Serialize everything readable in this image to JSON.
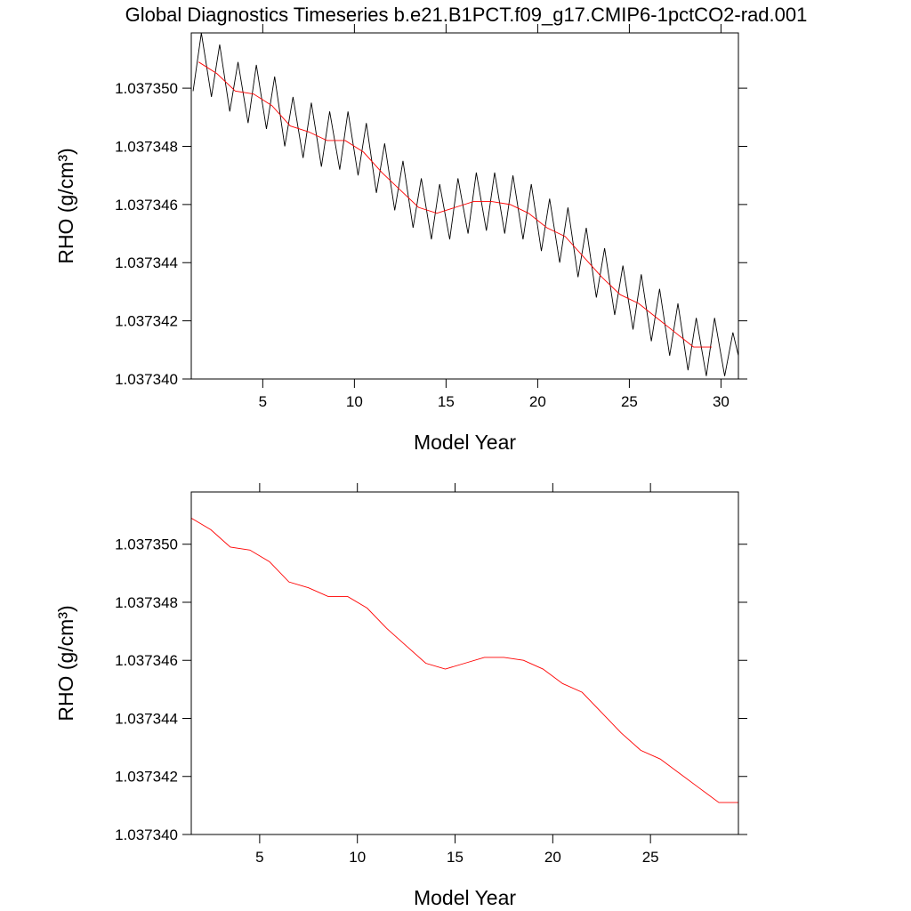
{
  "chart_data": [
    {
      "type": "line",
      "title": "Global Diagnostics Timeseries b.e21.B1PCT.f09_g17.CMIP6-1pctCO2-rad.001",
      "xlabel": "Model Year",
      "ylabel": "RHO (g/cm³)",
      "xlim": [
        1.1,
        30.95
      ],
      "xticks": [
        5,
        10,
        15,
        20,
        25,
        30
      ],
      "ylim": [
        1.03734,
        1.0373519
      ],
      "yticks": [
        {
          "value": 1.03734,
          "label": "1.037340"
        },
        {
          "value": 1.037342,
          "label": "1.037342"
        },
        {
          "value": 1.037344,
          "label": "1.037344"
        },
        {
          "value": 1.037346,
          "label": "1.037346"
        },
        {
          "value": 1.037348,
          "label": "1.037348"
        },
        {
          "value": 1.03735,
          "label": "1.037350"
        }
      ],
      "series": [
        {
          "color": "#000000",
          "x": [
            1.2,
            1.65,
            2.2,
            2.65,
            3.2,
            3.65,
            4.2,
            4.65,
            5.2,
            5.65,
            6.2,
            6.65,
            7.2,
            7.65,
            8.2,
            8.65,
            9.2,
            9.65,
            10.2,
            10.65,
            11.2,
            11.65,
            12.2,
            12.65,
            13.2,
            13.65,
            14.2,
            14.65,
            15.2,
            15.65,
            16.2,
            16.65,
            17.2,
            17.65,
            18.2,
            18.65,
            19.2,
            19.65,
            20.2,
            20.65,
            21.2,
            21.65,
            22.2,
            22.65,
            23.2,
            23.65,
            24.2,
            24.65,
            25.2,
            25.65,
            26.2,
            26.65,
            27.2,
            27.65,
            28.2,
            28.65,
            29.2,
            29.65,
            30.2,
            30.65,
            30.95
          ],
          "values": [
            1.0373499,
            1.0373519,
            1.0373497,
            1.0373515,
            1.0373492,
            1.0373509,
            1.0373488,
            1.0373508,
            1.0373486,
            1.0373504,
            1.037348,
            1.0373497,
            1.0373476,
            1.0373495,
            1.0373473,
            1.0373492,
            1.0373472,
            1.0373492,
            1.037347,
            1.0373488,
            1.0373464,
            1.0373481,
            1.0373458,
            1.0373475,
            1.0373452,
            1.0373469,
            1.0373448,
            1.0373467,
            1.0373448,
            1.0373469,
            1.037345,
            1.0373471,
            1.0373451,
            1.0373471,
            1.037345,
            1.037347,
            1.0373448,
            1.0373467,
            1.0373444,
            1.0373462,
            1.037344,
            1.0373459,
            1.0373435,
            1.0373452,
            1.0373428,
            1.0373445,
            1.0373422,
            1.0373439,
            1.0373417,
            1.0373436,
            1.0373413,
            1.0373431,
            1.0373408,
            1.0373426,
            1.0373403,
            1.0373421,
            1.0373401,
            1.0373421,
            1.0373401,
            1.0373416,
            1.0373408
          ]
        },
        {
          "color": "#ff0000",
          "x": [
            1.5,
            2.5,
            3.5,
            4.5,
            5.5,
            6.5,
            7.5,
            8.5,
            9.5,
            10.5,
            11.5,
            12.5,
            13.5,
            14.5,
            15.5,
            16.5,
            17.5,
            18.5,
            19.5,
            20.5,
            21.5,
            22.5,
            23.5,
            24.5,
            25.5,
            26.5,
            27.5,
            28.5,
            29.5
          ],
          "values": [
            1.0373509,
            1.0373505,
            1.0373499,
            1.0373498,
            1.0373494,
            1.0373487,
            1.0373485,
            1.0373482,
            1.0373482,
            1.0373478,
            1.0373471,
            1.0373465,
            1.0373459,
            1.0373457,
            1.0373459,
            1.0373461,
            1.0373461,
            1.037346,
            1.0373457,
            1.0373452,
            1.0373449,
            1.0373442,
            1.0373435,
            1.0373429,
            1.0373426,
            1.0373421,
            1.0373416,
            1.0373411,
            1.0373411
          ]
        }
      ]
    },
    {
      "type": "line",
      "xlabel": "Model Year",
      "ylabel": "RHO (g/cm³)",
      "xlim": [
        1.5,
        29.5
      ],
      "xticks": [
        5,
        10,
        15,
        20,
        25
      ],
      "ylim": [
        1.03734,
        1.0373518
      ],
      "yticks": [
        {
          "value": 1.03734,
          "label": "1.037340"
        },
        {
          "value": 1.037342,
          "label": "1.037342"
        },
        {
          "value": 1.037344,
          "label": "1.037344"
        },
        {
          "value": 1.037346,
          "label": "1.037346"
        },
        {
          "value": 1.037348,
          "label": "1.037348"
        },
        {
          "value": 1.03735,
          "label": "1.037350"
        }
      ],
      "series": [
        {
          "color": "#ff0000",
          "x": [
            1.5,
            2.5,
            3.5,
            4.5,
            5.5,
            6.5,
            7.5,
            8.5,
            9.5,
            10.5,
            11.5,
            12.5,
            13.5,
            14.5,
            15.5,
            16.5,
            17.5,
            18.5,
            19.5,
            20.5,
            21.5,
            22.5,
            23.5,
            24.5,
            25.5,
            26.5,
            27.5,
            28.5,
            29.5
          ],
          "values": [
            1.0373509,
            1.0373505,
            1.0373499,
            1.0373498,
            1.0373494,
            1.0373487,
            1.0373485,
            1.0373482,
            1.0373482,
            1.0373478,
            1.0373471,
            1.0373465,
            1.0373459,
            1.0373457,
            1.0373459,
            1.0373461,
            1.0373461,
            1.037346,
            1.0373457,
            1.0373452,
            1.0373449,
            1.0373442,
            1.0373435,
            1.0373429,
            1.0373426,
            1.0373421,
            1.0373416,
            1.0373411,
            1.0373411
          ]
        }
      ]
    }
  ]
}
